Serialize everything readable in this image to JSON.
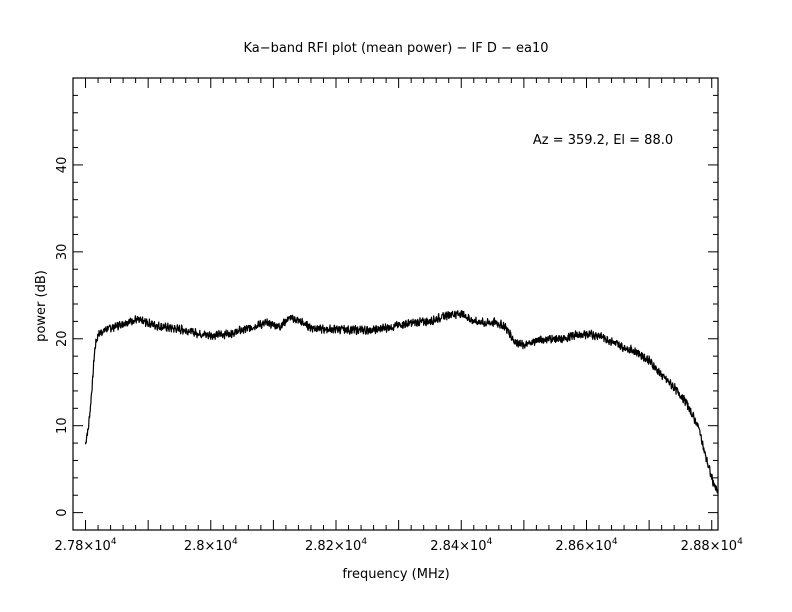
{
  "chart_data": {
    "type": "line",
    "title": "Ka−band RFI plot (mean power) − IF D − ea10",
    "xlabel": "frequency (MHz)",
    "ylabel": "power (dB)",
    "annotation": "Az = 359.2, El = 88.0",
    "xlim": [
      27780,
      28810
    ],
    "ylim": [
      -2,
      50
    ],
    "x_ticks": [
      {
        "value": 27800,
        "mantissa": "2.78",
        "exp": "4"
      },
      {
        "value": 28000,
        "mantissa": "2.8",
        "exp": "4"
      },
      {
        "value": 28200,
        "mantissa": "2.82",
        "exp": "4"
      },
      {
        "value": 28400,
        "mantissa": "2.84",
        "exp": "4"
      },
      {
        "value": 28600,
        "mantissa": "2.86",
        "exp": "4"
      },
      {
        "value": 28800,
        "mantissa": "2.88",
        "exp": "4"
      }
    ],
    "x_times": "×10",
    "y_ticks": [
      0,
      10,
      20,
      30,
      40
    ],
    "line_color": "#000000",
    "series": [
      {
        "x": [
          27800,
          27805,
          27810,
          27815,
          27820,
          27830,
          27850,
          27870,
          27880,
          27900,
          27920,
          27940,
          27960,
          27980,
          28000,
          28030,
          28060,
          28075,
          28090,
          28110,
          28125,
          28140,
          28160,
          28180,
          28200,
          28230,
          28260,
          28290,
          28310,
          28330,
          28350,
          28365,
          28380,
          28400,
          28420,
          28440,
          28455,
          28470,
          28485,
          28500,
          28520,
          28540,
          28560,
          28580,
          28600,
          28620,
          28640,
          28660,
          28680,
          28700,
          28720,
          28740,
          28760,
          28780,
          28790,
          28800,
          28805,
          28810
        ],
        "y": [
          8,
          10,
          14,
          19,
          20.5,
          21,
          21.5,
          22,
          22.2,
          21.8,
          21.4,
          21.2,
          21,
          20.6,
          20.4,
          20.6,
          21.2,
          21.6,
          21.8,
          21.4,
          22.4,
          22.1,
          21.3,
          21.1,
          21.1,
          21,
          21,
          21.4,
          21.7,
          21.9,
          22,
          22.4,
          22.8,
          22.9,
          22,
          21.8,
          21.9,
          21.4,
          19.7,
          19.2,
          19.8,
          20,
          19.9,
          20.4,
          20.5,
          20.4,
          19.7,
          19,
          18.5,
          17.5,
          15.8,
          14.4,
          12.6,
          9.6,
          6.5,
          4,
          3,
          2.3
        ]
      }
    ]
  }
}
